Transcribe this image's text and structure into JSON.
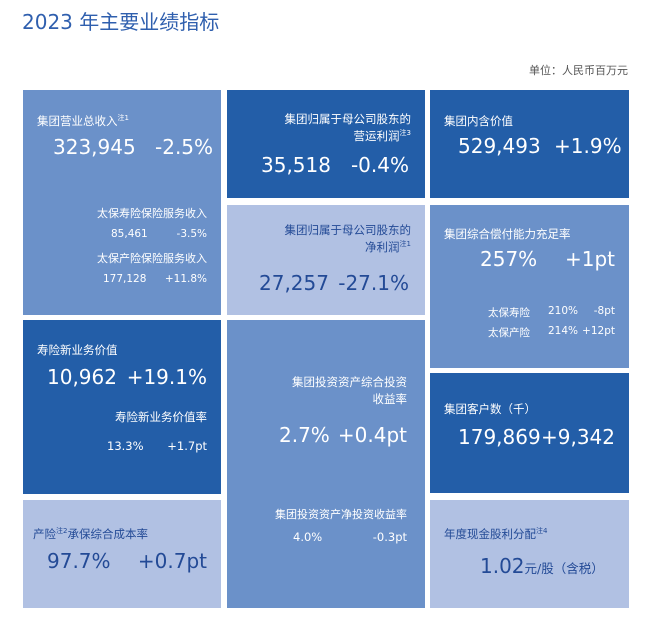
{
  "title": "2023 年主要业绩指标",
  "unit": "单位：人民币百万元",
  "revenue": {
    "label": "集团营业总收入",
    "note": "注1",
    "value": "323,945",
    "change": "-2.5%",
    "life_label": "太保寿险保险服务收入",
    "life_value": "85,461",
    "life_change": "-3.5%",
    "pc_label": "太保产险保险服务收入",
    "pc_value": "177,128",
    "pc_change": "+11.8%"
  },
  "operating_profit": {
    "label_line1": "集团归属于母公司股东的",
    "label_line2": "营运利润",
    "note": "注3",
    "value": "35,518",
    "change": "-0.4%"
  },
  "embedded_value": {
    "label": "集团内含价值",
    "value": "529,493",
    "change": "+1.9%"
  },
  "net_profit": {
    "label_line1": "集团归属于母公司股东的",
    "label_line2": "净利润",
    "note": "注1",
    "value": "27,257",
    "change": "-27.1%"
  },
  "solvency": {
    "label": "集团综合偿付能力充足率",
    "value": "257%",
    "change": "+1pt",
    "life_label": "太保寿险",
    "life_value": "210%",
    "life_change": "-8pt",
    "pc_label": "太保产险",
    "pc_value": "214%",
    "pc_change": "+12pt"
  },
  "nbv": {
    "label": "寿险新业务价值",
    "value": "10,962",
    "change": "+19.1%",
    "margin_label": "寿险新业务价值率",
    "margin_value": "13.3%",
    "margin_change": "+1.7pt"
  },
  "investment": {
    "label_line1": "集团投资资产综合投资",
    "label_line2": "收益率",
    "value": "2.7%",
    "change": "+0.4pt",
    "net_label": "集团投资资产净投资收益率",
    "net_value": "4.0%",
    "net_change": "-0.3pt"
  },
  "customers": {
    "label": "集团客户数（千）",
    "value": "179,869",
    "change": "+9,342"
  },
  "combined_ratio": {
    "label_pre": "产险",
    "note": "注2",
    "label_post": "承保综合成本率",
    "value": "97.7%",
    "change": "+0.7pt"
  },
  "dividend": {
    "label": "年度现金股利分配",
    "note": "注4",
    "value": "1.02",
    "unit": "元/股（含税）"
  }
}
